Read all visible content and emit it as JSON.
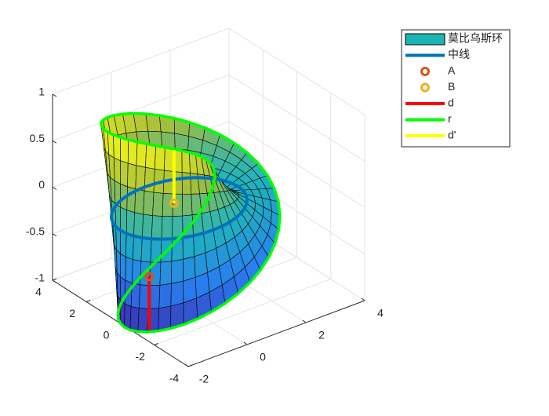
{
  "chart_data": {
    "type": "surface3d",
    "xlim": [
      -2,
      4
    ],
    "xticks": [
      -2,
      0,
      2,
      4
    ],
    "ylim": [
      -4,
      4
    ],
    "yticks": [
      -4,
      -2,
      0,
      2,
      4
    ],
    "zlim": [
      -1,
      1
    ],
    "zticks": [
      -1,
      -0.5,
      0,
      0.5,
      1
    ],
    "grid": true,
    "legend": "top-right",
    "series": [
      {
        "name": "莫比乌斯环",
        "color": "#1cb5b5",
        "kind": "surface"
      },
      {
        "name": "中线",
        "color": "#0072bd",
        "kind": "midline"
      },
      {
        "name": "A",
        "color": "#d95319",
        "kind": "point",
        "x": [
          -2
        ],
        "y": [
          -1.7
        ],
        "z": [
          -0.3
        ]
      },
      {
        "name": "B",
        "color": "#edb120",
        "kind": "point",
        "x": [
          -0.5
        ],
        "y": [
          -0.56
        ],
        "z": [
          0.18
        ]
      },
      {
        "name": "d",
        "color": "#ff0000",
        "kind": "segment",
        "x": [
          -2,
          -2
        ],
        "y": [
          -1.7,
          -1.7
        ],
        "z": [
          -0.87,
          -0.3
        ]
      },
      {
        "name": "r",
        "color": "#00ff00",
        "kind": "edge"
      },
      {
        "name": "d'",
        "color": "#ffff00",
        "kind": "segment",
        "x": [
          -0.5,
          -0.5
        ],
        "y": [
          -0.56,
          -0.56
        ],
        "z": [
          0.75,
          0.18
        ]
      }
    ]
  }
}
